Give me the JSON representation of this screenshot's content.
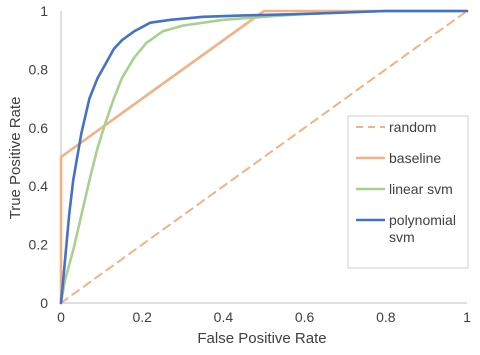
{
  "chart_data": {
    "type": "line",
    "title": "",
    "xlabel": "False Positive Rate",
    "ylabel": "True Positive Rate",
    "xlim": [
      0,
      1
    ],
    "ylim": [
      0,
      1
    ],
    "x_ticks": [
      "0",
      "0.2",
      "0.4",
      "0.6",
      "0.8",
      "1"
    ],
    "y_ticks": [
      "0",
      "0.2",
      "0.4",
      "0.6",
      "0.8",
      "1"
    ],
    "grid": false,
    "legend_position": "right",
    "series": [
      {
        "name": "random",
        "color": "#F4B183",
        "dash": true,
        "points": [
          [
            0,
            0
          ],
          [
            1,
            1
          ]
        ]
      },
      {
        "name": "baseline",
        "color": "#F4B183",
        "dash": false,
        "points": [
          [
            0,
            0
          ],
          [
            0,
            0.5
          ],
          [
            0.5,
            1
          ],
          [
            1,
            1
          ]
        ]
      },
      {
        "name": "linear svm",
        "color": "#A9D18E",
        "dash": false,
        "points": [
          [
            0,
            0
          ],
          [
            0.01,
            0.08
          ],
          [
            0.03,
            0.18
          ],
          [
            0.05,
            0.3
          ],
          [
            0.07,
            0.42
          ],
          [
            0.09,
            0.53
          ],
          [
            0.11,
            0.62
          ],
          [
            0.13,
            0.7
          ],
          [
            0.15,
            0.77
          ],
          [
            0.18,
            0.84
          ],
          [
            0.21,
            0.89
          ],
          [
            0.25,
            0.93
          ],
          [
            0.3,
            0.95
          ],
          [
            0.35,
            0.96
          ],
          [
            0.4,
            0.97
          ],
          [
            0.5,
            0.98
          ],
          [
            0.6,
            0.99
          ],
          [
            0.8,
            1.0
          ],
          [
            1,
            1.0
          ]
        ]
      },
      {
        "name": "polynomial svm",
        "color": "#4472C4",
        "dash": false,
        "points": [
          [
            0,
            0
          ],
          [
            0.01,
            0.15
          ],
          [
            0.02,
            0.3
          ],
          [
            0.03,
            0.42
          ],
          [
            0.05,
            0.58
          ],
          [
            0.07,
            0.7
          ],
          [
            0.09,
            0.77
          ],
          [
            0.11,
            0.82
          ],
          [
            0.13,
            0.87
          ],
          [
            0.15,
            0.9
          ],
          [
            0.18,
            0.93
          ],
          [
            0.22,
            0.96
          ],
          [
            0.27,
            0.97
          ],
          [
            0.35,
            0.98
          ],
          [
            0.45,
            0.985
          ],
          [
            0.6,
            0.99
          ],
          [
            0.8,
            1.0
          ],
          [
            1,
            1.0
          ]
        ]
      }
    ]
  }
}
